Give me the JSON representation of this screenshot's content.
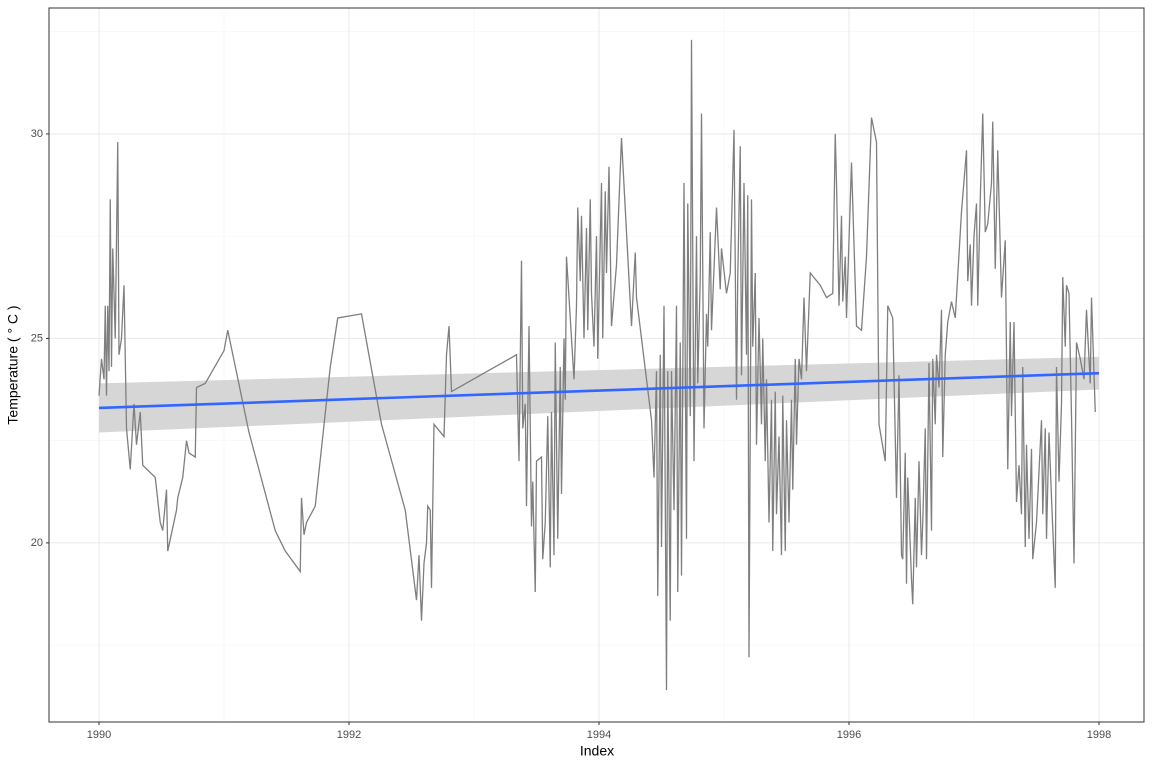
{
  "chart_data": {
    "type": "line",
    "x_label": "Index",
    "y_label": "Temperature ( ° C )",
    "xlim": [
      1989.6,
      1998.36
    ],
    "xticks": [
      1990,
      1992,
      1994,
      1996,
      1998
    ],
    "minor_xticks": [
      1991,
      1993,
      1995,
      1997
    ],
    "ylim": [
      15.62,
      33.08
    ],
    "yticks": [
      20,
      25,
      30
    ],
    "minor_yticks": [
      17.5,
      22.5,
      27.5,
      32.5
    ],
    "grid": true,
    "color": "#7f7f7f",
    "x": [
      1990.0,
      1990.02,
      1990.04,
      1990.05,
      1990.06,
      1990.07,
      1990.08,
      1990.09,
      1990.1,
      1990.11,
      1990.13,
      1990.15,
      1990.16,
      1990.18,
      1990.2,
      1990.22,
      1990.25,
      1990.28,
      1990.3,
      1990.33,
      1990.35,
      1990.45,
      1990.49,
      1990.51,
      1990.54,
      1990.55,
      1990.62,
      1990.63,
      1990.67,
      1990.7,
      1990.72,
      1990.77,
      1990.78,
      1990.85,
      1991.0,
      1991.03,
      1991.2,
      1991.41,
      1991.49,
      1991.61,
      1991.62,
      1991.64,
      1991.66,
      1991.73,
      1991.85,
      1991.91,
      1992.1,
      1992.26,
      1992.45,
      1992.54,
      1992.56,
      1992.58,
      1992.6,
      1992.62,
      1992.63,
      1992.65,
      1992.66,
      1992.68,
      1992.76,
      1992.78,
      1992.8,
      1992.82,
      1993.34,
      1993.36,
      1993.38,
      1993.39,
      1993.41,
      1993.42,
      1993.44,
      1993.46,
      1993.47,
      1993.49,
      1993.5,
      1993.54,
      1993.55,
      1993.57,
      1993.59,
      1993.61,
      1993.62,
      1993.64,
      1993.65,
      1993.67,
      1993.69,
      1993.7,
      1993.72,
      1993.73,
      1993.74,
      1993.78,
      1993.8,
      1993.82,
      1993.83,
      1993.85,
      1993.86,
      1993.88,
      1993.9,
      1993.91,
      1993.93,
      1993.94,
      1993.96,
      1993.98,
      1993.99,
      1994.02,
      1994.03,
      1994.05,
      1994.06,
      1994.08,
      1994.1,
      1994.14,
      1994.18,
      1994.26,
      1994.29,
      1994.3,
      1994.42,
      1994.44,
      1994.46,
      1994.47,
      1994.49,
      1994.5,
      1994.52,
      1994.54,
      1994.55,
      1994.57,
      1994.58,
      1994.6,
      1994.62,
      1994.63,
      1994.65,
      1994.66,
      1994.68,
      1994.7,
      1994.71,
      1994.73,
      1994.74,
      1994.76,
      1994.78,
      1994.79,
      1994.81,
      1994.82,
      1994.84,
      1994.86,
      1994.87,
      1994.89,
      1994.9,
      1994.94,
      1994.97,
      1994.98,
      1995.02,
      1995.05,
      1995.08,
      1995.1,
      1995.11,
      1995.13,
      1995.14,
      1995.16,
      1995.18,
      1995.19,
      1995.2,
      1995.22,
      1995.23,
      1995.25,
      1995.26,
      1995.28,
      1995.3,
      1995.31,
      1995.33,
      1995.34,
      1995.36,
      1995.38,
      1995.39,
      1995.41,
      1995.42,
      1995.44,
      1995.46,
      1995.47,
      1995.49,
      1995.5,
      1995.52,
      1995.54,
      1995.55,
      1995.57,
      1995.58,
      1995.6,
      1995.62,
      1995.64,
      1995.66,
      1995.69,
      1995.77,
      1995.82,
      1995.87,
      1995.89,
      1995.9,
      1995.92,
      1995.94,
      1995.95,
      1995.97,
      1995.98,
      1996.02,
      1996.06,
      1996.1,
      1996.14,
      1996.18,
      1996.22,
      1996.24,
      1996.29,
      1996.31,
      1996.35,
      1996.37,
      1996.38,
      1996.4,
      1996.42,
      1996.43,
      1996.45,
      1996.46,
      1996.47,
      1996.5,
      1996.51,
      1996.53,
      1996.54,
      1996.56,
      1996.58,
      1996.59,
      1996.61,
      1996.62,
      1996.64,
      1996.66,
      1996.67,
      1996.69,
      1996.7,
      1996.72,
      1996.74,
      1996.75,
      1996.77,
      1996.79,
      1996.82,
      1996.85,
      1996.9,
      1996.94,
      1996.95,
      1996.97,
      1996.98,
      1997.0,
      1997.02,
      1997.03,
      1997.05,
      1997.07,
      1997.09,
      1997.11,
      1997.14,
      1997.15,
      1997.17,
      1997.19,
      1997.22,
      1997.25,
      1997.27,
      1997.29,
      1997.3,
      1997.32,
      1997.34,
      1997.36,
      1997.38,
      1997.39,
      1997.41,
      1997.42,
      1997.44,
      1997.46,
      1997.47,
      1997.5,
      1997.54,
      1997.55,
      1997.57,
      1997.58,
      1997.6,
      1997.62,
      1997.65,
      1997.66,
      1997.68,
      1997.7,
      1997.71,
      1997.73,
      1997.74,
      1997.76,
      1997.78,
      1997.8,
      1997.82,
      1997.85,
      1997.88,
      1997.9,
      1997.93,
      1997.94,
      1997.97
    ],
    "values": [
      23.6,
      24.5,
      24.0,
      25.8,
      23.6,
      25.8,
      24.2,
      28.4,
      24.3,
      27.2,
      25.0,
      29.8,
      24.6,
      25.0,
      26.3,
      22.8,
      21.8,
      23.4,
      22.4,
      23.2,
      21.9,
      21.6,
      20.5,
      20.3,
      21.3,
      19.8,
      20.8,
      21.1,
      21.6,
      22.5,
      22.2,
      22.1,
      23.8,
      23.9,
      24.7,
      25.2,
      22.7,
      20.3,
      19.8,
      19.3,
      21.1,
      20.2,
      20.5,
      20.9,
      24.3,
      25.5,
      25.6,
      22.9,
      20.8,
      18.6,
      19.7,
      18.1,
      19.5,
      20.0,
      20.9,
      20.8,
      18.9,
      22.9,
      22.6,
      24.6,
      25.3,
      23.7,
      24.6,
      22.0,
      26.9,
      22.8,
      23.4,
      20.9,
      25.3,
      20.4,
      21.5,
      18.8,
      22.0,
      22.1,
      19.6,
      20.5,
      23.1,
      19.4,
      23.2,
      19.7,
      24.9,
      20.1,
      24.3,
      21.2,
      25.0,
      23.5,
      27.0,
      25.0,
      24.0,
      25.8,
      28.2,
      26.4,
      28.0,
      25.0,
      27.7,
      25.2,
      28.4,
      26.1,
      24.8,
      27.5,
      24.5,
      28.8,
      25.0,
      28.6,
      26.6,
      29.2,
      25.3,
      26.8,
      29.9,
      25.3,
      27.1,
      26.0,
      23.0,
      21.6,
      24.2,
      18.7,
      24.6,
      19.9,
      25.8,
      16.4,
      24.2,
      18.1,
      24.2,
      20.8,
      25.8,
      18.8,
      24.9,
      19.2,
      28.8,
      20.1,
      28.3,
      23.1,
      32.3,
      22.0,
      27.5,
      23.9,
      26.5,
      30.5,
      22.8,
      25.6,
      24.8,
      27.6,
      25.2,
      28.2,
      26.2,
      27.2,
      26.1,
      26.6,
      30.1,
      23.5,
      26.5,
      29.7,
      24.1,
      28.8,
      24.6,
      28.5,
      17.2,
      28.4,
      24.8,
      26.6,
      22.4,
      25.5,
      22.9,
      25.0,
      22.0,
      24.0,
      20.5,
      23.5,
      19.8,
      23.7,
      20.7,
      22.6,
      19.7,
      23.6,
      19.8,
      23.0,
      20.5,
      23.5,
      21.3,
      24.5,
      22.4,
      24.5,
      24.0,
      26.0,
      24.2,
      26.6,
      26.3,
      26.0,
      26.1,
      30.0,
      28.8,
      25.8,
      28.0,
      25.9,
      27.0,
      25.5,
      29.3,
      25.3,
      25.2,
      27.0,
      30.4,
      29.8,
      22.9,
      22.0,
      25.8,
      25.5,
      22.6,
      21.1,
      24.1,
      19.7,
      19.6,
      22.2,
      19.0,
      21.6,
      19.1,
      18.5,
      21.1,
      19.4,
      22.0,
      19.7,
      20.5,
      22.8,
      19.6,
      24.4,
      20.3,
      24.5,
      22.9,
      24.6,
      23.8,
      25.7,
      22.1,
      24.6,
      25.4,
      25.9,
      25.5,
      28.1,
      29.6,
      26.4,
      27.3,
      25.8,
      27.5,
      28.3,
      25.8,
      28.4,
      30.5,
      27.6,
      27.8,
      28.8,
      30.3,
      26.7,
      29.6,
      26.0,
      27.4,
      21.8,
      25.4,
      23.1,
      25.4,
      21.0,
      21.9,
      20.7,
      24.3,
      19.9,
      22.4,
      20.1,
      22.3,
      19.6,
      20.5,
      23.0,
      20.7,
      22.8,
      20.1,
      22.7,
      21.1,
      18.9,
      24.3,
      21.5,
      23.4,
      26.5,
      24.8,
      26.3,
      26.1,
      23.1,
      19.5,
      24.9,
      24.5,
      24.0,
      25.7,
      23.9,
      26.0,
      23.2
    ],
    "trend": {
      "x": [
        1990,
        1998
      ],
      "values": [
        23.3,
        24.15
      ],
      "lower": [
        22.7,
        23.75
      ],
      "upper": [
        23.9,
        24.55
      ],
      "color": "#3366ff",
      "band_color": "#d6d6d6"
    }
  }
}
